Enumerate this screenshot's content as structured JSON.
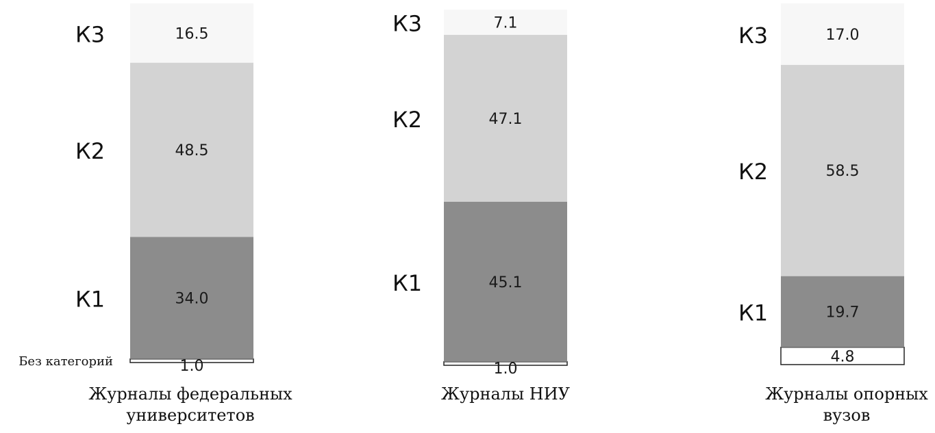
{
  "chart_data": {
    "type": "bar",
    "stacked": true,
    "categories": [
      [
        "Журналы федеральных",
        "университетов"
      ],
      [
        "Журналы НИУ"
      ],
      [
        "Журналы опорных",
        "вузов"
      ]
    ],
    "series": [
      {
        "name": "Без категорий",
        "values": [
          1.0,
          1.0,
          4.8
        ],
        "color": "#ffffff"
      },
      {
        "name": "К1",
        "values": [
          34.0,
          45.1,
          19.7
        ],
        "color": "#8c8c8c"
      },
      {
        "name": "К2",
        "values": [
          48.5,
          47.1,
          58.5
        ],
        "color": "#d3d3d3"
      },
      {
        "name": "К3",
        "values": [
          16.5,
          7.1,
          17.0
        ],
        "color": "#f7f7f7"
      }
    ],
    "value_labels": [
      [
        "1.0",
        "34.0",
        "48.5",
        "16.5"
      ],
      [
        "1.0",
        "45.1",
        "47.1",
        "7.1"
      ],
      [
        "4.8",
        "19.7",
        "58.5",
        "17.0"
      ]
    ],
    "segment_tags": [
      [
        "Без категорий",
        "К1",
        "К2",
        "К3"
      ],
      [
        "",
        "К1",
        "К2",
        "К3"
      ],
      [
        "",
        "К1",
        "К2",
        "К3"
      ]
    ],
    "title": "",
    "xlabel": "",
    "ylabel": "",
    "ylim": [
      0,
      100
    ],
    "grid": false,
    "legend": "none"
  }
}
